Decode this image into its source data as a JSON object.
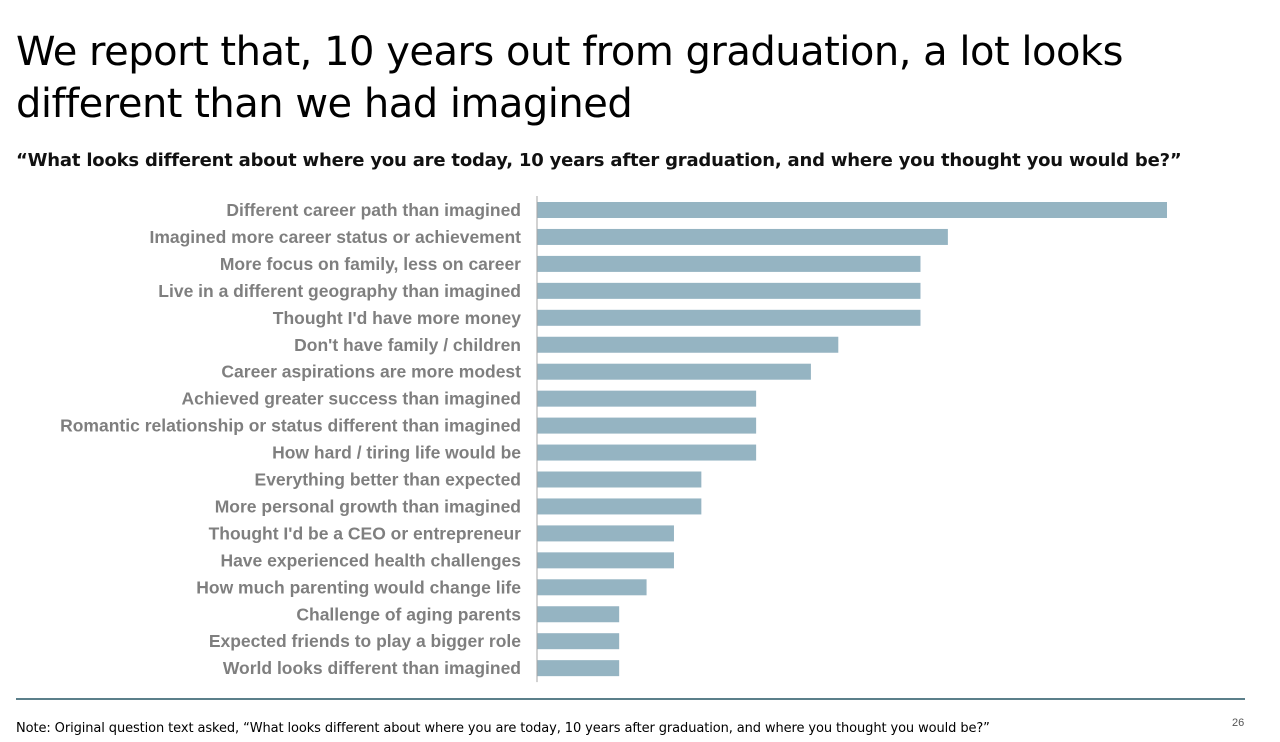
{
  "slide": {
    "title": "We report that, 10 years out from graduation, a lot looks different than we had imagined",
    "subtitle": "“What looks different about where you are today, 10 years after graduation, and where you thought you would be?”",
    "note": "Note: Original question text asked, “What looks different about where you are today, 10 years after graduation, and where you thought you would be?”",
    "page_number": "26"
  },
  "colors": {
    "bar": "#95b4c2",
    "label": "#7f7f7f",
    "rule": "#5b7f8a",
    "axis": "#a6a6a6"
  },
  "chart_data": {
    "type": "bar",
    "orientation": "horizontal",
    "title": "",
    "xlabel": "",
    "ylabel": "",
    "categories": [
      "Different career path than imagined",
      "Imagined more career status or achievement",
      "More focus on family, less on career",
      "Live in a different geography than imagined",
      "Thought I'd have more money",
      "Don't have family / children",
      "Career aspirations are more modest",
      "Achieved greater success than imagined",
      "Romantic relationship or status different than imagined",
      "How hard / tiring life would be",
      "Everything better than expected",
      "More personal growth than imagined",
      "Thought I'd be a CEO or entrepreneur",
      "Have experienced health challenges",
      "How much parenting would change life",
      "Challenge of aging parents",
      "Expected friends to play a bigger role",
      "World looks different than imagined"
    ],
    "values": [
      23,
      15,
      14,
      14,
      14,
      11,
      10,
      8,
      8,
      8,
      6,
      6,
      5,
      5,
      4,
      3,
      3,
      3
    ],
    "xlim": [
      0,
      23
    ],
    "grid": false,
    "legend": "none"
  }
}
